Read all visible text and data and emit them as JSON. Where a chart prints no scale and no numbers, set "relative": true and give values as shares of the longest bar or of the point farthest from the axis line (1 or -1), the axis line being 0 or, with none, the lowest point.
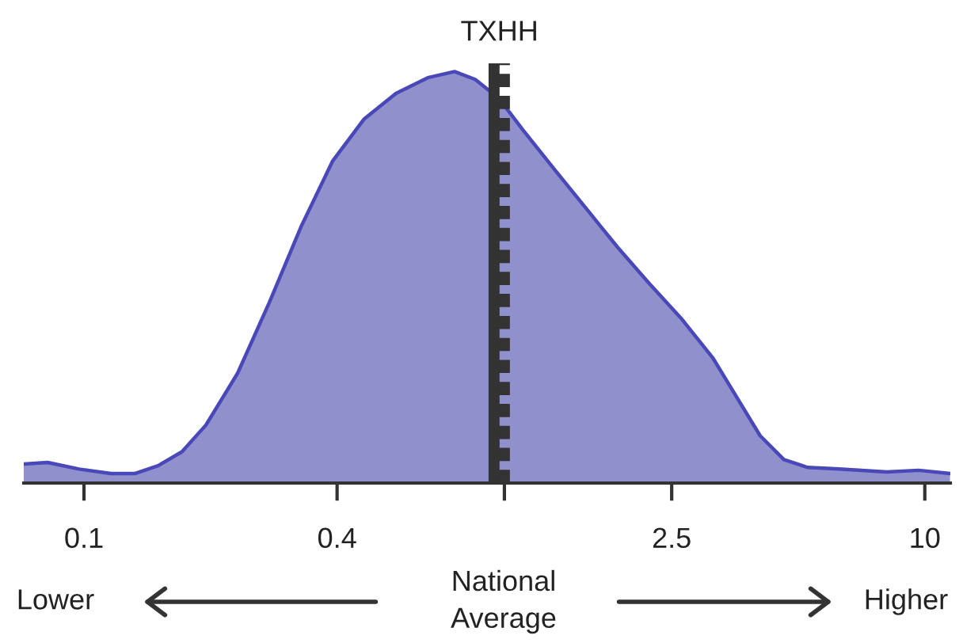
{
  "chart_data": {
    "type": "area",
    "relative": true,
    "log": "x",
    "xlim": [
      0.0719,
      11.5
    ],
    "xticks": [
      0.1,
      0.4,
      {
        "value": 1,
        "label": null
      },
      2.5,
      10
    ],
    "tick_labels": "x",
    "grid": false,
    "legend": false,
    "x": [
      0.0719,
      0.0819,
      0.0974,
      0.116,
      0.132,
      0.15,
      0.171,
      0.195,
      0.232,
      0.276,
      0.328,
      0.39,
      0.464,
      0.552,
      0.657,
      0.761,
      0.852,
      0.97,
      1.105,
      1.314,
      1.563,
      1.859,
      2.211,
      2.63,
      3.128,
      3.563,
      4.058,
      4.622,
      5.265,
      6.261,
      8.12,
      9.66,
      11.48
    ],
    "series": [
      {
        "color": "#9090cc",
        "values": [
          0.046,
          0.05,
          0.034,
          0.023,
          0.023,
          0.042,
          0.076,
          0.141,
          0.267,
          0.439,
          0.622,
          0.782,
          0.885,
          0.947,
          0.985,
          1,
          0.981,
          0.935,
          0.859,
          0.763,
          0.668,
          0.573,
          0.485,
          0.401,
          0.305,
          0.21,
          0.115,
          0.057,
          0.038,
          0.034,
          0.027,
          0.031,
          0.023
        ]
      }
    ],
    "ref_lines": [
      {
        "axis": "x",
        "value": 0.945,
        "label": "TXHH",
        "color": "#333333",
        "line_style": "solid"
      },
      {
        "axis": "x",
        "value": 1,
        "label": null,
        "color": "#333333",
        "line_style": "dashed"
      }
    ],
    "annotations": [
      "Lower",
      "National\nAverage",
      "Higher"
    ]
  }
}
